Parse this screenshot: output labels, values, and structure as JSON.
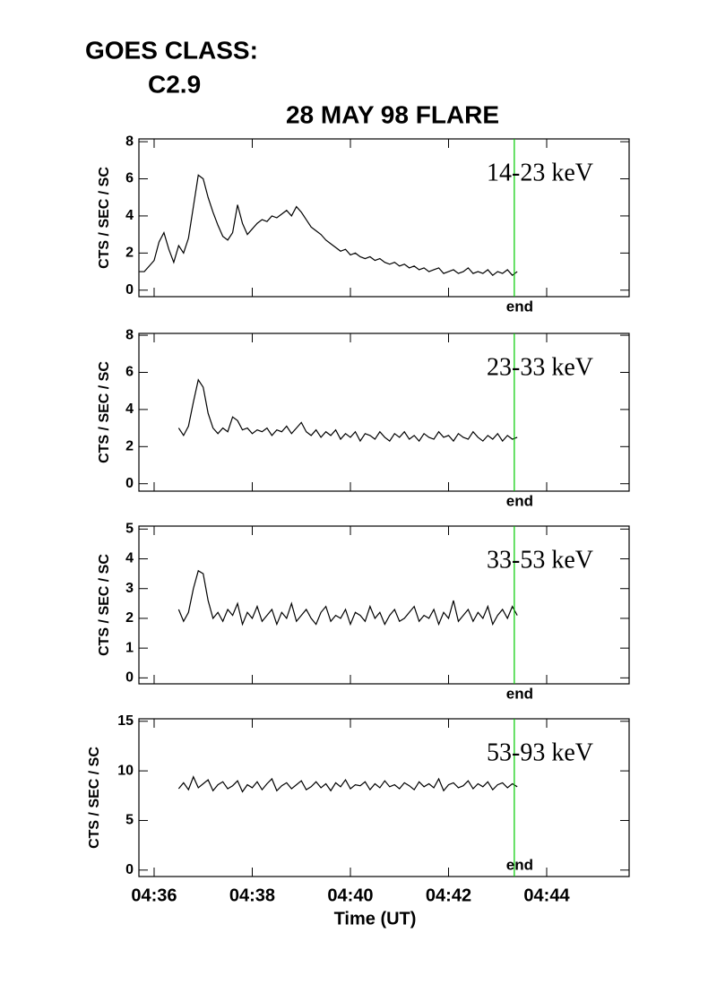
{
  "header": {
    "label": "GOES CLASS:",
    "goes_class": "C2.9",
    "title": "28 MAY 98 FLARE"
  },
  "chart_data": [
    {
      "type": "line",
      "ylabel": "CTS / SEC / SC",
      "annotation": "14-23 keV",
      "color": "#000000",
      "xlim": [
        35.69,
        45.68
      ],
      "xticks": [
        36,
        38,
        40,
        42,
        44
      ],
      "ylim": [
        -0.35,
        8.15
      ],
      "yticks": [
        0,
        2,
        4,
        6,
        8
      ],
      "vline": {
        "x": 43.34,
        "color": "#00cc00",
        "label": "end"
      },
      "x": [
        35.7,
        35.8,
        35.9,
        36.0,
        36.1,
        36.2,
        36.3,
        36.4,
        36.5,
        36.6,
        36.7,
        36.8,
        36.9,
        37.0,
        37.1,
        37.2,
        37.3,
        37.4,
        37.5,
        37.6,
        37.7,
        37.8,
        37.9,
        38.0,
        38.1,
        38.2,
        38.3,
        38.4,
        38.5,
        38.6,
        38.7,
        38.8,
        38.9,
        39.0,
        39.1,
        39.2,
        39.3,
        39.4,
        39.5,
        39.6,
        39.7,
        39.8,
        39.9,
        40.0,
        40.1,
        40.2,
        40.3,
        40.4,
        40.5,
        40.6,
        40.7,
        40.8,
        40.9,
        41.0,
        41.1,
        41.2,
        41.3,
        41.4,
        41.5,
        41.6,
        41.7,
        41.8,
        41.9,
        42.0,
        42.1,
        42.2,
        42.3,
        42.4,
        42.5,
        42.6,
        42.7,
        42.8,
        42.9,
        43.0,
        43.1,
        43.2,
        43.3,
        43.4
      ],
      "values": [
        1.0,
        1.0,
        1.3,
        1.6,
        2.6,
        3.1,
        2.2,
        1.5,
        2.4,
        2.0,
        2.8,
        4.5,
        6.2,
        6.0,
        5.0,
        4.2,
        3.5,
        2.9,
        2.7,
        3.1,
        4.6,
        3.6,
        3.0,
        3.3,
        3.6,
        3.8,
        3.7,
        4.0,
        3.9,
        4.1,
        4.3,
        4.0,
        4.5,
        4.2,
        3.8,
        3.4,
        3.2,
        3.0,
        2.7,
        2.5,
        2.3,
        2.1,
        2.2,
        1.9,
        2.0,
        1.8,
        1.7,
        1.8,
        1.6,
        1.7,
        1.5,
        1.4,
        1.5,
        1.3,
        1.4,
        1.2,
        1.3,
        1.1,
        1.2,
        1.0,
        1.1,
        1.2,
        0.9,
        1.0,
        1.1,
        0.9,
        1.0,
        1.2,
        0.9,
        1.0,
        0.9,
        1.1,
        0.8,
        1.0,
        0.9,
        1.1,
        0.8,
        1.0
      ]
    },
    {
      "type": "line",
      "ylabel": "CTS / SEC / SC",
      "annotation": "23-33 keV",
      "color": "#000000",
      "xlim": [
        35.69,
        45.68
      ],
      "xticks": [
        36,
        38,
        40,
        42,
        44
      ],
      "ylim": [
        -0.4,
        8.1
      ],
      "yticks": [
        0,
        2,
        4,
        6,
        8
      ],
      "vline": {
        "x": 43.34,
        "color": "#00cc00",
        "label": "end"
      },
      "x": [
        36.5,
        36.6,
        36.7,
        36.8,
        36.9,
        37.0,
        37.1,
        37.2,
        37.3,
        37.4,
        37.5,
        37.6,
        37.7,
        37.8,
        37.9,
        38.0,
        38.1,
        38.2,
        38.3,
        38.4,
        38.5,
        38.6,
        38.7,
        38.8,
        38.9,
        39.0,
        39.1,
        39.2,
        39.3,
        39.4,
        39.5,
        39.6,
        39.7,
        39.8,
        39.9,
        40.0,
        40.1,
        40.2,
        40.3,
        40.4,
        40.5,
        40.6,
        40.7,
        40.8,
        40.9,
        41.0,
        41.1,
        41.2,
        41.3,
        41.4,
        41.5,
        41.6,
        41.7,
        41.8,
        41.9,
        42.0,
        42.1,
        42.2,
        42.3,
        42.4,
        42.5,
        42.6,
        42.7,
        42.8,
        42.9,
        43.0,
        43.1,
        43.2,
        43.3,
        43.4
      ],
      "values": [
        3.0,
        2.6,
        3.1,
        4.4,
        5.6,
        5.2,
        3.8,
        3.0,
        2.7,
        3.0,
        2.8,
        3.6,
        3.4,
        2.9,
        3.0,
        2.7,
        2.9,
        2.8,
        3.0,
        2.6,
        2.9,
        2.8,
        3.1,
        2.7,
        3.0,
        3.3,
        2.8,
        2.6,
        2.9,
        2.5,
        2.8,
        2.6,
        2.9,
        2.4,
        2.7,
        2.5,
        2.8,
        2.3,
        2.7,
        2.6,
        2.4,
        2.8,
        2.5,
        2.3,
        2.7,
        2.5,
        2.8,
        2.4,
        2.6,
        2.3,
        2.7,
        2.5,
        2.4,
        2.8,
        2.5,
        2.6,
        2.3,
        2.7,
        2.5,
        2.4,
        2.8,
        2.5,
        2.3,
        2.6,
        2.4,
        2.7,
        2.3,
        2.6,
        2.4,
        2.5
      ]
    },
    {
      "type": "line",
      "ylabel": "CTS / SEC / SC",
      "annotation": "33-53 keV",
      "color": "#000000",
      "xlim": [
        35.69,
        45.68
      ],
      "xticks": [
        36,
        38,
        40,
        42,
        44
      ],
      "ylim": [
        -0.2,
        5.1
      ],
      "yticks": [
        0,
        1,
        2,
        3,
        4,
        5
      ],
      "vline": {
        "x": 43.34,
        "color": "#00cc00",
        "label": "end"
      },
      "x": [
        36.5,
        36.6,
        36.7,
        36.8,
        36.9,
        37.0,
        37.1,
        37.2,
        37.3,
        37.4,
        37.5,
        37.6,
        37.7,
        37.8,
        37.9,
        38.0,
        38.1,
        38.2,
        38.3,
        38.4,
        38.5,
        38.6,
        38.7,
        38.8,
        38.9,
        39.0,
        39.1,
        39.2,
        39.3,
        39.4,
        39.5,
        39.6,
        39.7,
        39.8,
        39.9,
        40.0,
        40.1,
        40.2,
        40.3,
        40.4,
        40.5,
        40.6,
        40.7,
        40.8,
        40.9,
        41.0,
        41.1,
        41.2,
        41.3,
        41.4,
        41.5,
        41.6,
        41.7,
        41.8,
        41.9,
        42.0,
        42.1,
        42.2,
        42.3,
        42.4,
        42.5,
        42.6,
        42.7,
        42.8,
        42.9,
        43.0,
        43.1,
        43.2,
        43.3,
        43.4
      ],
      "values": [
        2.3,
        1.9,
        2.2,
        3.0,
        3.6,
        3.5,
        2.6,
        2.0,
        2.2,
        1.9,
        2.3,
        2.1,
        2.5,
        1.8,
        2.2,
        2.0,
        2.4,
        1.9,
        2.1,
        2.3,
        1.8,
        2.2,
        2.0,
        2.5,
        1.9,
        2.1,
        2.3,
        2.0,
        1.8,
        2.2,
        2.4,
        1.9,
        2.1,
        2.0,
        2.3,
        1.8,
        2.2,
        2.1,
        1.9,
        2.4,
        2.0,
        2.2,
        1.8,
        2.1,
        2.3,
        1.9,
        2.0,
        2.2,
        2.4,
        1.9,
        2.1,
        2.0,
        2.3,
        1.8,
        2.2,
        2.0,
        2.6,
        1.9,
        2.1,
        2.3,
        1.9,
        2.2,
        2.0,
        2.4,
        1.8,
        2.1,
        2.3,
        2.0,
        2.4,
        2.1
      ]
    },
    {
      "type": "line",
      "ylabel": "CTS / SEC / SC",
      "annotation": "53-93 keV",
      "color": "#000000",
      "xlabel": "Time (UT)",
      "xlim": [
        35.69,
        45.68
      ],
      "xticks": [
        {
          "value": 36,
          "label": "04:36"
        },
        {
          "value": 38,
          "label": "04:38"
        },
        {
          "value": 40,
          "label": "04:40"
        },
        {
          "value": 42,
          "label": "04:42"
        },
        {
          "value": 44,
          "label": "04:44"
        }
      ],
      "ylim": [
        -0.65,
        15.25
      ],
      "yticks": [
        0,
        5,
        10,
        15
      ],
      "vline": {
        "x": 43.34,
        "color": "#00cc00",
        "label": "end"
      },
      "x": [
        36.5,
        36.6,
        36.7,
        36.8,
        36.9,
        37.0,
        37.1,
        37.2,
        37.3,
        37.4,
        37.5,
        37.6,
        37.7,
        37.8,
        37.9,
        38.0,
        38.1,
        38.2,
        38.3,
        38.4,
        38.5,
        38.6,
        38.7,
        38.8,
        38.9,
        39.0,
        39.1,
        39.2,
        39.3,
        39.4,
        39.5,
        39.6,
        39.7,
        39.8,
        39.9,
        40.0,
        40.1,
        40.2,
        40.3,
        40.4,
        40.5,
        40.6,
        40.7,
        40.8,
        40.9,
        41.0,
        41.1,
        41.2,
        41.3,
        41.4,
        41.5,
        41.6,
        41.7,
        41.8,
        41.9,
        42.0,
        42.1,
        42.2,
        42.3,
        42.4,
        42.5,
        42.6,
        42.7,
        42.8,
        42.9,
        43.0,
        43.1,
        43.2,
        43.3,
        43.4
      ],
      "values": [
        8.2,
        8.8,
        8.1,
        9.4,
        8.3,
        8.7,
        9.1,
        8.0,
        8.6,
        8.9,
        8.2,
        8.5,
        9.0,
        7.9,
        8.6,
        8.3,
        8.9,
        8.1,
        8.7,
        9.2,
        8.0,
        8.5,
        8.8,
        8.2,
        8.6,
        9.0,
        8.1,
        8.4,
        8.9,
        8.3,
        8.7,
        8.0,
        8.8,
        8.4,
        9.1,
        8.2,
        8.6,
        8.5,
        8.9,
        8.1,
        8.7,
        8.3,
        9.0,
        8.4,
        8.6,
        8.2,
        8.8,
        8.5,
        8.1,
        8.9,
        8.4,
        8.7,
        8.3,
        9.2,
        8.0,
        8.6,
        8.8,
        8.3,
        8.5,
        9.0,
        8.2,
        8.7,
        8.4,
        8.9,
        8.1,
        8.6,
        8.8,
        8.3,
        8.7,
        8.4
      ]
    }
  ]
}
